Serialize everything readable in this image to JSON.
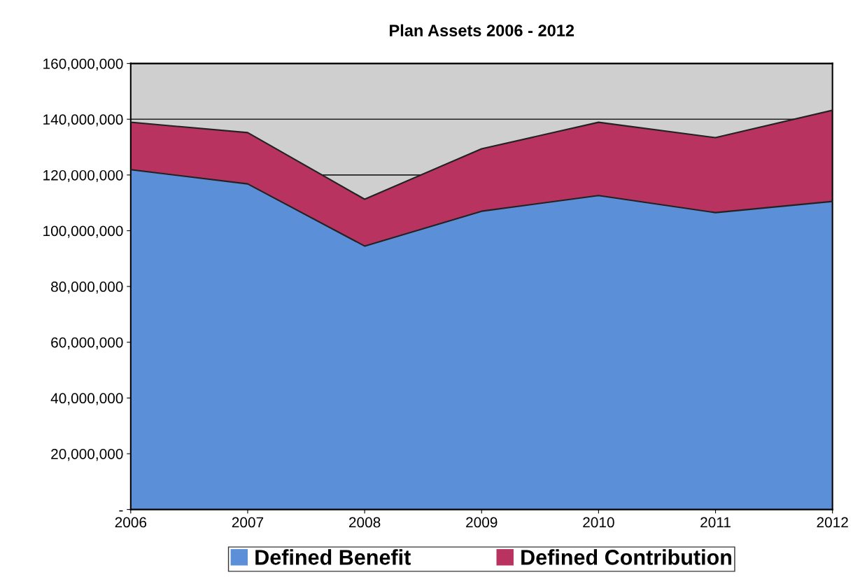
{
  "chart_data": {
    "type": "area",
    "title": "Plan Assets 2006 - 2012",
    "stacked": true,
    "categories": [
      "2006",
      "2007",
      "2008",
      "2009",
      "2010",
      "2011",
      "2012"
    ],
    "series": [
      {
        "name": "Defined Benefit",
        "color": "#5b8fd8",
        "values": [
          121900000,
          116800000,
          94500000,
          107000000,
          112600000,
          106500000,
          110500000
        ]
      },
      {
        "name": "Defined Contribution",
        "color": "#b8335f",
        "values": [
          17000000,
          18400000,
          16800000,
          22400000,
          26300000,
          26900000,
          32700000
        ]
      }
    ],
    "ylim": [
      0,
      160000000
    ],
    "yticks": [
      {
        "value": 0,
        "label": "-"
      },
      {
        "value": 20000000,
        "label": "20,000,000"
      },
      {
        "value": 40000000,
        "label": "40,000,000"
      },
      {
        "value": 60000000,
        "label": "60,000,000"
      },
      {
        "value": 80000000,
        "label": "80,000,000"
      },
      {
        "value": 100000000,
        "label": "100,000,000"
      },
      {
        "value": 120000000,
        "label": "120,000,000"
      },
      {
        "value": 140000000,
        "label": "140,000,000"
      },
      {
        "value": 160000000,
        "label": "160,000,000"
      }
    ],
    "grid": "y",
    "legend": "bottom"
  }
}
